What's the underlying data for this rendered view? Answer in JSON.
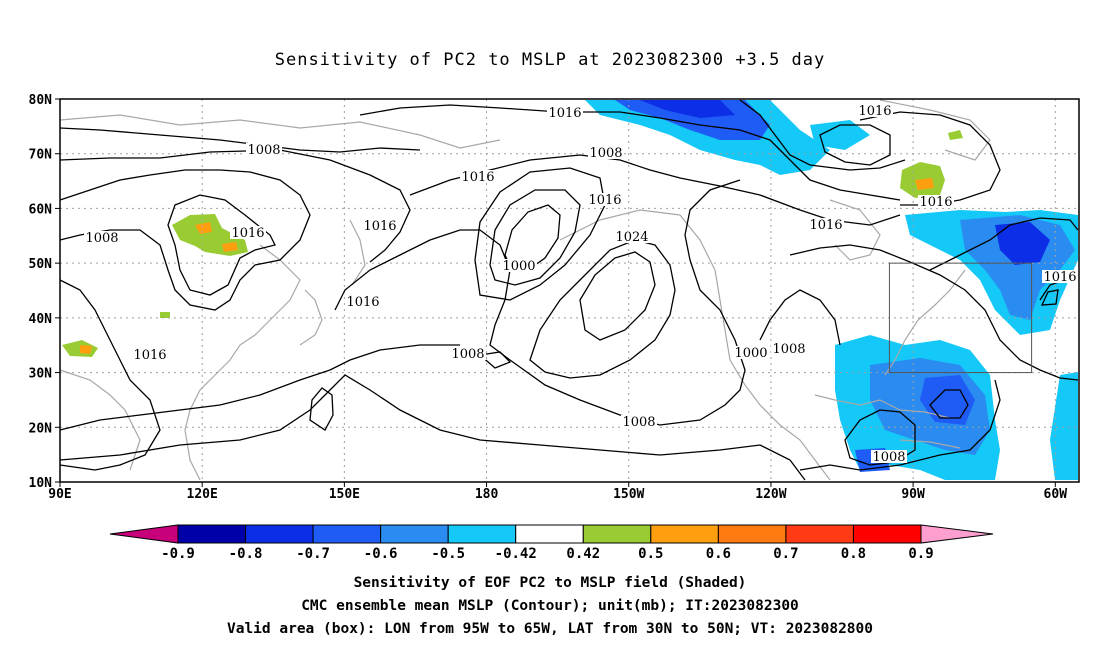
{
  "title": "Sensitivity of PC2 to MSLP at 2023082300 +3.5 day",
  "map": {
    "lat_labels": [
      "80N",
      "70N",
      "60N",
      "50N",
      "40N",
      "30N",
      "20N",
      "10N"
    ],
    "lon_labels": [
      "90E",
      "120E",
      "150E",
      "180",
      "150W",
      "120W",
      "90W",
      "60W"
    ],
    "lon_range": [
      90,
      305
    ],
    "lat_range": [
      10,
      80
    ],
    "contour_labels": [
      "1016",
      "1008",
      "1016",
      "1008",
      "1016",
      "1016",
      "1008",
      "1016",
      "1024",
      "1000",
      "1016",
      "1016",
      "1008",
      "1000",
      "1008",
      "1016",
      "1016",
      "1016",
      "1008",
      "1008",
      "1016"
    ],
    "box": {
      "lon": [
        265,
        295
      ],
      "lat": [
        30,
        50
      ]
    }
  },
  "colorbar": {
    "labels": [
      "-0.9",
      "-0.8",
      "-0.7",
      "-0.6",
      "-0.5",
      "-0.42",
      "0.42",
      "0.5",
      "0.6",
      "0.7",
      "0.8",
      "0.9"
    ],
    "colors": [
      "#c8007a",
      "#0000a8",
      "#0b2ee6",
      "#1f5cf5",
      "#2a8cf0",
      "#14c8f8",
      "#ffffff",
      "#99cc33",
      "#ff9f10",
      "#ff7a10",
      "#ff3a14",
      "#ff0000",
      "#ff9fd0"
    ]
  },
  "captions": [
    "Sensitivity of EOF PC2 to MSLP field (Shaded)",
    "CMC ensemble mean MSLP (Contour); unit(mb); IT:2023082300",
    "Valid area (box): LON from 95W to 65W, LAT from 30N to 50N; VT: 2023082800"
  ]
}
